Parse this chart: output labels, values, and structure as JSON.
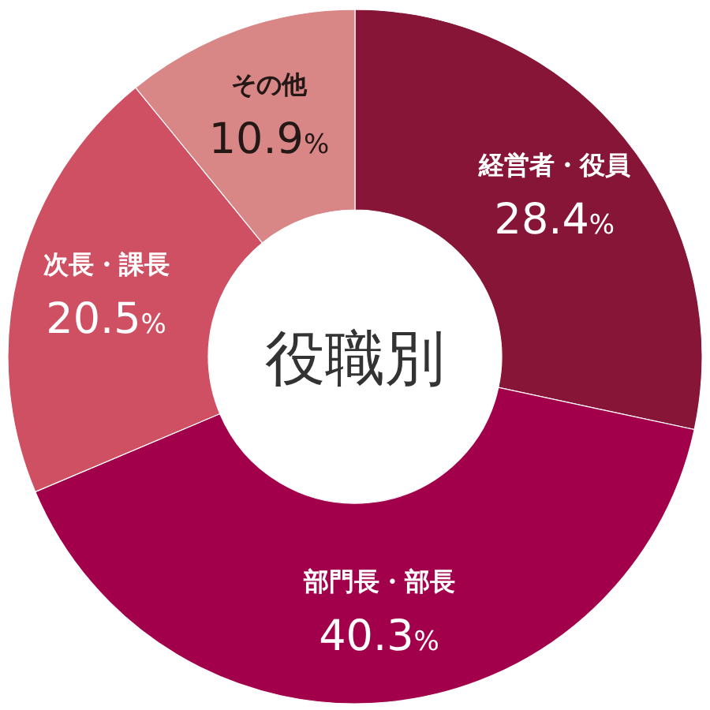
{
  "chart_data": {
    "type": "donut",
    "title": "役職別",
    "categories": [
      "経営者・役員",
      "部門長・部長",
      "次長・課長",
      "その他"
    ],
    "values": [
      28.4,
      40.3,
      20.5,
      10.9
    ],
    "colors": [
      "#861538",
      "#a3004c",
      "#cf5062",
      "#d98687"
    ],
    "value_labels": [
      "28.4%",
      "40.3%",
      "20.5%",
      "10.9%"
    ]
  }
}
